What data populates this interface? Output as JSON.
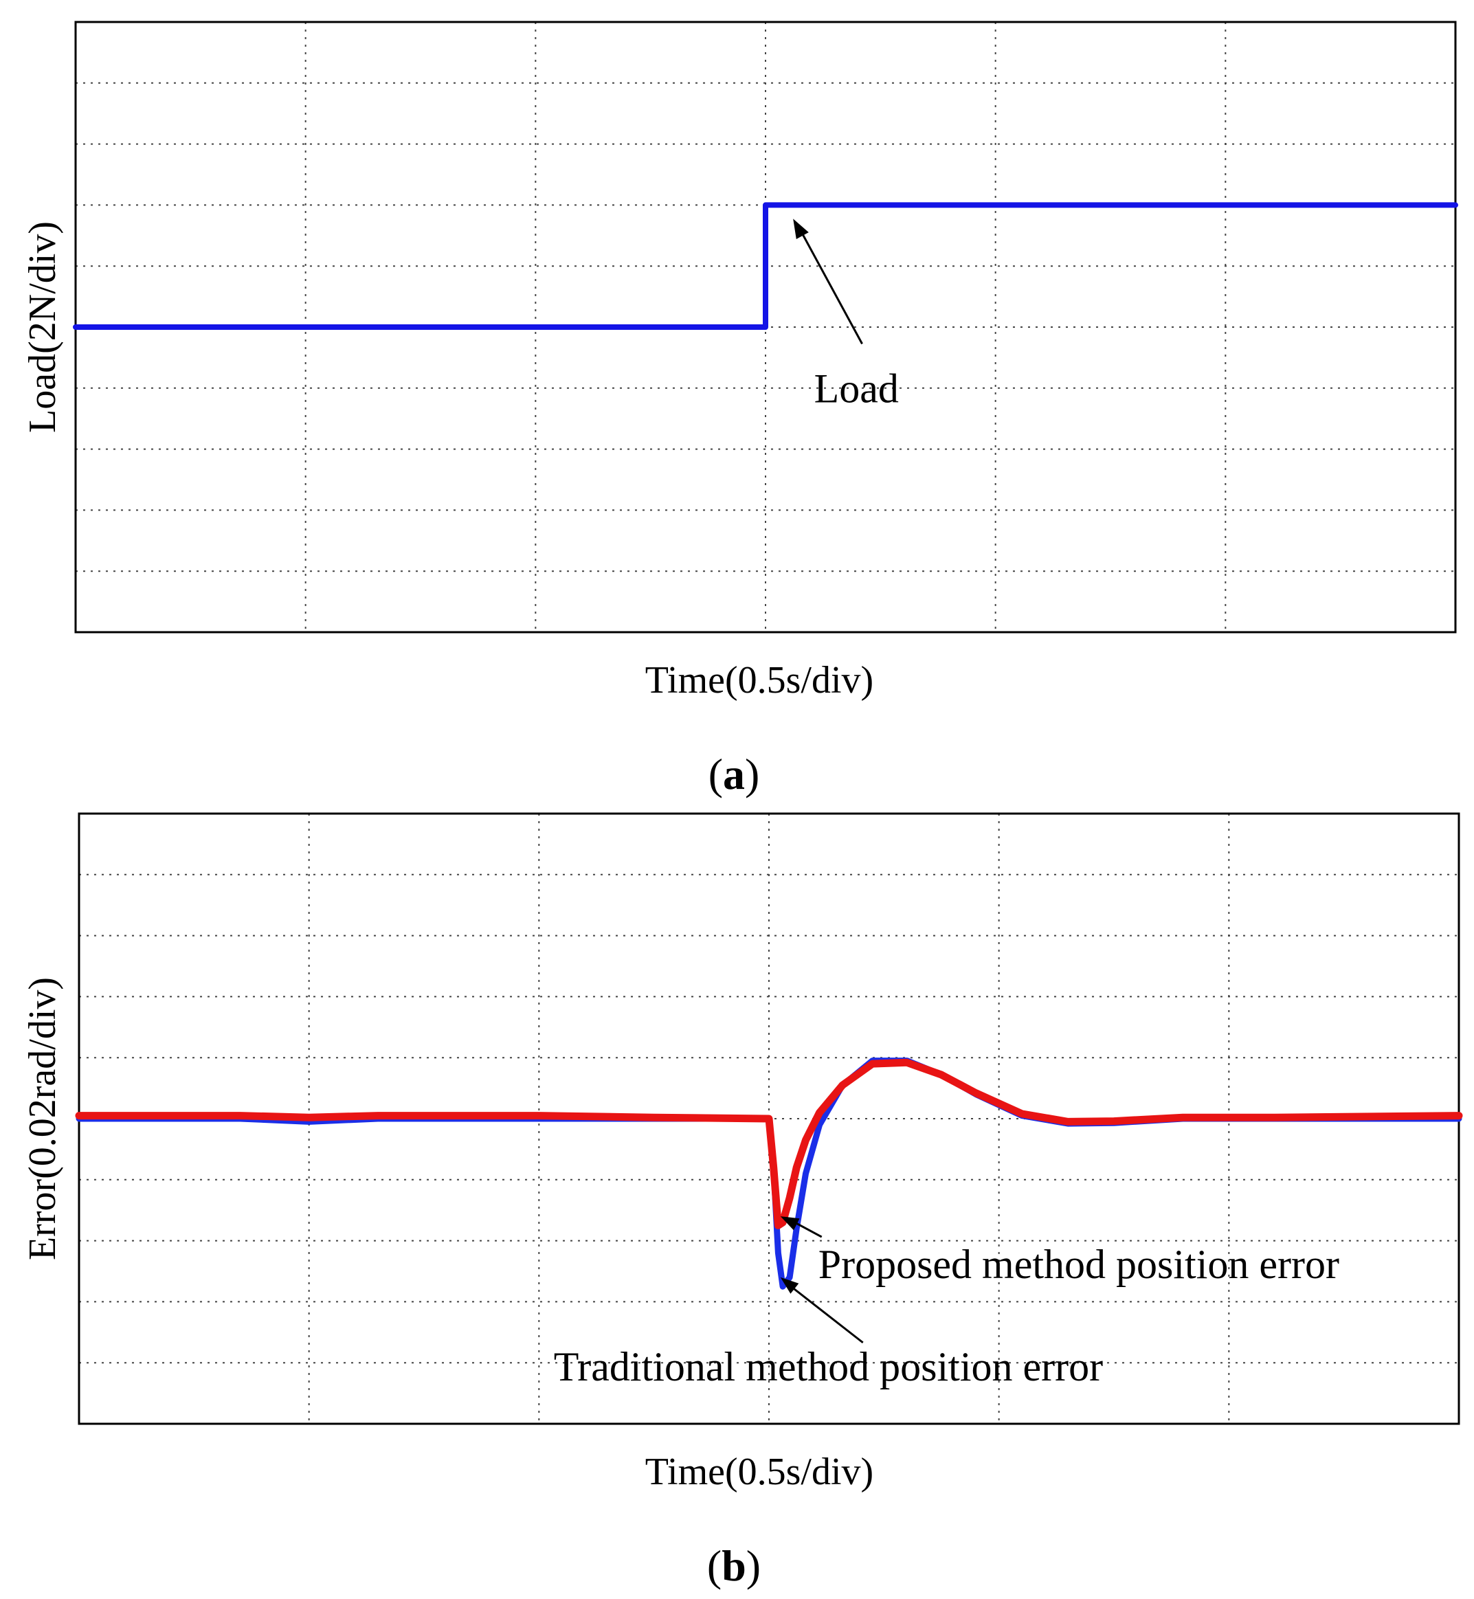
{
  "panels": [
    {
      "id": "a",
      "caption_letter": "a",
      "annotation": "Load",
      "annotation_point": {
        "x": 0.12,
        "y": 2
      },
      "annotation_text_at": {
        "x": 0.45,
        "y": -0.5
      }
    },
    {
      "id": "b",
      "caption_letter": "b",
      "annotations": [
        {
          "text": "Proposed method position error",
          "point": {
            "x": 0.05,
            "y": -1.6
          }
        },
        {
          "text": "Traditional method position error",
          "point": {
            "x": 0.05,
            "y": -2.6
          }
        }
      ]
    }
  ],
  "chart_data": [
    {
      "type": "line",
      "title": "",
      "xlabel": "Time(0.5s/div)",
      "ylabel": "Load(2N/div)",
      "x_divisions": 6,
      "y_divisions": 10,
      "xlim": [
        -3,
        3
      ],
      "ylim": [
        -5,
        5
      ],
      "grid": true,
      "series": [
        {
          "color": "#1414e6",
          "x": [
            -3,
            0,
            0,
            3
          ],
          "y": [
            0,
            0,
            2,
            2
          ]
        }
      ]
    },
    {
      "type": "line",
      "title": "",
      "xlabel": "Time(0.5s/div)",
      "ylabel": "Error(0.02rad/div)",
      "x_divisions": 6,
      "y_divisions": 10,
      "xlim": [
        -3,
        3
      ],
      "ylim": [
        -5,
        5
      ],
      "grid": true,
      "series": [
        {
          "name": "Traditional method position error",
          "color": "#1a2ee8",
          "x": [
            -3,
            -2.3,
            -2.0,
            -1.7,
            -1.0,
            -0.5,
            0,
            0.02,
            0.04,
            0.06,
            0.09,
            0.12,
            0.16,
            0.22,
            0.32,
            0.45,
            0.6,
            0.75,
            0.9,
            1.1,
            1.3,
            1.5,
            1.8,
            2.2,
            3
          ],
          "y": [
            0,
            0,
            -0.05,
            0,
            0,
            0,
            0,
            -0.8,
            -2.2,
            -2.75,
            -2.6,
            -1.8,
            -0.9,
            -0.1,
            0.55,
            0.95,
            0.95,
            0.72,
            0.4,
            0.05,
            -0.08,
            -0.07,
            0,
            0,
            0
          ]
        },
        {
          "name": "Proposed method position error",
          "color": "#e81414",
          "x": [
            -3,
            -2.3,
            -2.0,
            -1.7,
            -1.0,
            -0.5,
            0,
            0.02,
            0.04,
            0.06,
            0.09,
            0.12,
            0.16,
            0.22,
            0.32,
            0.45,
            0.6,
            0.75,
            0.9,
            1.1,
            1.3,
            1.5,
            1.8,
            2.2,
            3
          ],
          "y": [
            0.05,
            0.05,
            0.02,
            0.05,
            0.05,
            0.02,
            0,
            -0.8,
            -1.75,
            -1.7,
            -1.3,
            -0.8,
            -0.35,
            0.1,
            0.55,
            0.9,
            0.92,
            0.72,
            0.42,
            0.08,
            -0.05,
            -0.04,
            0.02,
            0.02,
            0.05
          ]
        }
      ]
    }
  ]
}
